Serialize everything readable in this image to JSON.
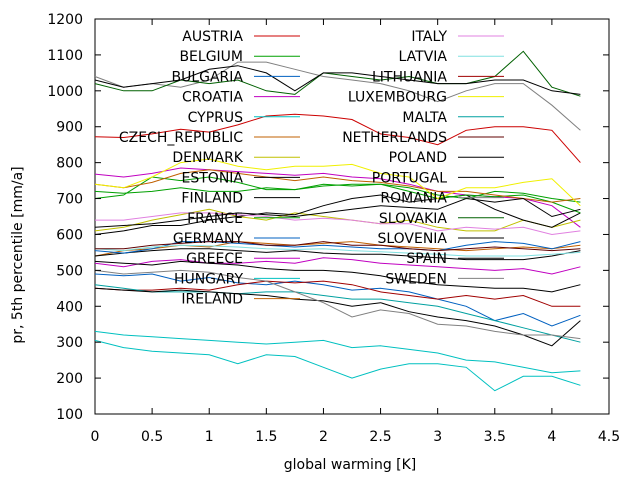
{
  "chart_data": {
    "type": "line",
    "xlabel": "global warming [K]",
    "ylabel": "pr, 5th percentile [mm/a]",
    "xlim": [
      0,
      4.5
    ],
    "ylim": [
      100,
      1200
    ],
    "x_ticks": [
      "0",
      "0.5",
      "1",
      "1.5",
      "2",
      "2.5",
      "3",
      "3.5",
      "4",
      "4.5"
    ],
    "y_ticks": [
      "100",
      "200",
      "300",
      "400",
      "500",
      "600",
      "700",
      "800",
      "900",
      "1000",
      "1100",
      "1200"
    ],
    "grid": false,
    "legend_position": "top, two columns",
    "x": [
      0,
      0.25,
      0.5,
      0.75,
      1,
      1.25,
      1.5,
      1.75,
      2,
      2.25,
      2.5,
      2.75,
      3,
      3.25,
      3.5,
      3.75,
      4,
      4.25
    ],
    "series": [
      {
        "name": "AUSTRIA",
        "color": "#cc0000",
        "values": [
          872,
          870,
          880,
          893,
          885,
          905,
          930,
          935,
          930,
          920,
          880,
          870,
          850,
          890,
          900,
          900,
          890,
          800
        ]
      },
      {
        "name": "BELGIUM",
        "color": "#00a000",
        "values": [
          700,
          710,
          760,
          750,
          760,
          745,
          725,
          725,
          735,
          740,
          740,
          730,
          710,
          700,
          720,
          715,
          700,
          690
        ]
      },
      {
        "name": "BULGARIA",
        "color": "#0060c0",
        "values": [
          490,
          485,
          490,
          470,
          480,
          465,
          460,
          470,
          460,
          445,
          450,
          440,
          420,
          400,
          360,
          380,
          345,
          375
        ]
      },
      {
        "name": "CROATIA",
        "color": "#c000c0",
        "values": [
          768,
          760,
          770,
          785,
          780,
          775,
          770,
          765,
          770,
          760,
          755,
          740,
          720,
          710,
          705,
          700,
          680,
          620
        ]
      },
      {
        "name": "CYPRUS",
        "color": "#00c0c0",
        "values": [
          330,
          320,
          315,
          310,
          305,
          300,
          295,
          300,
          305,
          285,
          290,
          280,
          270,
          250,
          245,
          230,
          215,
          220
        ]
      },
      {
        "name": "CZECH_REPUBLIC",
        "color": "#c06000",
        "values": [
          540,
          555,
          560,
          570,
          565,
          580,
          575,
          570,
          575,
          580,
          570,
          565,
          560,
          555,
          560,
          565,
          560,
          570
        ]
      },
      {
        "name": "DENMARK",
        "color": "#c0c000",
        "values": [
          610,
          620,
          640,
          655,
          670,
          650,
          640,
          660,
          650,
          640,
          630,
          640,
          620,
          610,
          610,
          640,
          620,
          640
        ]
      },
      {
        "name": "ESTONIA",
        "color": "#000000",
        "values": [
          540,
          548,
          555,
          560,
          560,
          555,
          550,
          555,
          548,
          545,
          545,
          540,
          535,
          530,
          530,
          530,
          540,
          555
        ]
      },
      {
        "name": "FINLAND",
        "color": "#000000",
        "values": [
          600,
          610,
          625,
          625,
          640,
          650,
          660,
          655,
          680,
          700,
          710,
          690,
          700,
          710,
          670,
          640,
          620,
          660
        ]
      },
      {
        "name": "FRANCE",
        "color": "#00a000",
        "values": [
          720,
          715,
          720,
          730,
          720,
          720,
          730,
          725,
          740,
          735,
          740,
          720,
          700,
          710,
          705,
          710,
          690,
          660
        ]
      },
      {
        "name": "GERMANY",
        "color": "#0060c0",
        "values": [
          555,
          548,
          560,
          580,
          580,
          575,
          570,
          565,
          570,
          565,
          560,
          560,
          555,
          570,
          580,
          575,
          560,
          580
        ]
      },
      {
        "name": "GREECE",
        "color": "#c000c0",
        "values": [
          520,
          510,
          525,
          530,
          520,
          520,
          525,
          520,
          535,
          530,
          520,
          515,
          510,
          505,
          500,
          505,
          490,
          510
        ]
      },
      {
        "name": "HUNGARY",
        "color": "#00c0c0",
        "values": [
          305,
          285,
          275,
          270,
          265,
          240,
          265,
          260,
          230,
          200,
          225,
          240,
          240,
          230,
          165,
          205,
          205,
          180
        ]
      },
      {
        "name": "IRELAND",
        "color": "#c06000",
        "values": [
          740,
          730,
          745,
          770,
          780,
          770,
          760,
          750,
          760,
          750,
          745,
          735,
          720,
          720,
          710,
          700,
          690,
          700
        ]
      },
      {
        "name": "ITALY",
        "color": "#e080e0",
        "values": [
          640,
          640,
          650,
          660,
          660,
          655,
          650,
          640,
          645,
          640,
          630,
          630,
          610,
          620,
          615,
          620,
          600,
          610
        ]
      },
      {
        "name": "LATVIA",
        "color": "#80e0e0",
        "values": [
          560,
          555,
          565,
          570,
          568,
          565,
          560,
          558,
          560,
          555,
          552,
          548,
          545,
          540,
          540,
          540,
          545,
          550
        ]
      },
      {
        "name": "LITHUANIA",
        "color": "#a00000",
        "values": [
          450,
          445,
          445,
          450,
          445,
          460,
          470,
          465,
          470,
          460,
          440,
          430,
          420,
          430,
          420,
          430,
          400,
          400
        ]
      },
      {
        "name": "LUXEMBOURG",
        "color": "#f0f000",
        "values": [
          740,
          730,
          760,
          800,
          810,
          790,
          780,
          790,
          790,
          795,
          770,
          760,
          700,
          730,
          730,
          745,
          755,
          680
        ]
      },
      {
        "name": "MALTA",
        "color": "#00a0a0",
        "values": [
          460,
          450,
          440,
          440,
          440,
          435,
          440,
          440,
          430,
          420,
          420,
          410,
          400,
          380,
          360,
          340,
          320,
          300
        ]
      },
      {
        "name": "NETHERLANDS",
        "color": "#600000",
        "values": [
          560,
          560,
          570,
          575,
          580,
          580,
          570,
          570,
          580,
          570,
          570,
          560,
          555,
          560,
          565,
          560,
          555,
          560
        ]
      },
      {
        "name": "POLAND",
        "color": "#000000",
        "values": [
          525,
          520,
          515,
          525,
          520,
          515,
          505,
          500,
          500,
          495,
          485,
          470,
          460,
          455,
          450,
          450,
          440,
          460
        ]
      },
      {
        "name": "PORTUGAL",
        "color": "#000000",
        "values": [
          450,
          445,
          440,
          445,
          440,
          435,
          430,
          420,
          415,
          400,
          410,
          385,
          370,
          360,
          345,
          320,
          290,
          360
        ]
      },
      {
        "name": "ROMANIA",
        "color": "#808080",
        "values": [
          1040,
          1010,
          1020,
          1010,
          1030,
          1080,
          1080,
          1060,
          1040,
          1030,
          1020,
          1000,
          970,
          1000,
          1020,
          1020,
          960,
          890
        ]
      },
      {
        "name": "SLOVAKIA",
        "color": "#006000",
        "values": [
          1020,
          1000,
          1000,
          1030,
          1020,
          1030,
          1000,
          990,
          1050,
          1040,
          1030,
          1040,
          1020,
          1020,
          1040,
          1110,
          1010,
          985
        ]
      },
      {
        "name": "SLOVENIA",
        "color": "#000000",
        "values": [
          1030,
          1010,
          1020,
          1030,
          1060,
          1070,
          1050,
          1000,
          1050,
          1050,
          1040,
          1030,
          1020,
          1020,
          1030,
          1030,
          1000,
          990
        ]
      },
      {
        "name": "SPAIN",
        "color": "#000000",
        "values": [
          620,
          625,
          630,
          640,
          650,
          660,
          655,
          650,
          660,
          670,
          680,
          675,
          670,
          700,
          690,
          700,
          650,
          670
        ]
      },
      {
        "name": "SWEDEN",
        "color": "#808080",
        "values": [
          500,
          490,
          495,
          500,
          495,
          480,
          470,
          440,
          410,
          370,
          390,
          380,
          350,
          345,
          330,
          320,
          320,
          310
        ]
      }
    ]
  }
}
